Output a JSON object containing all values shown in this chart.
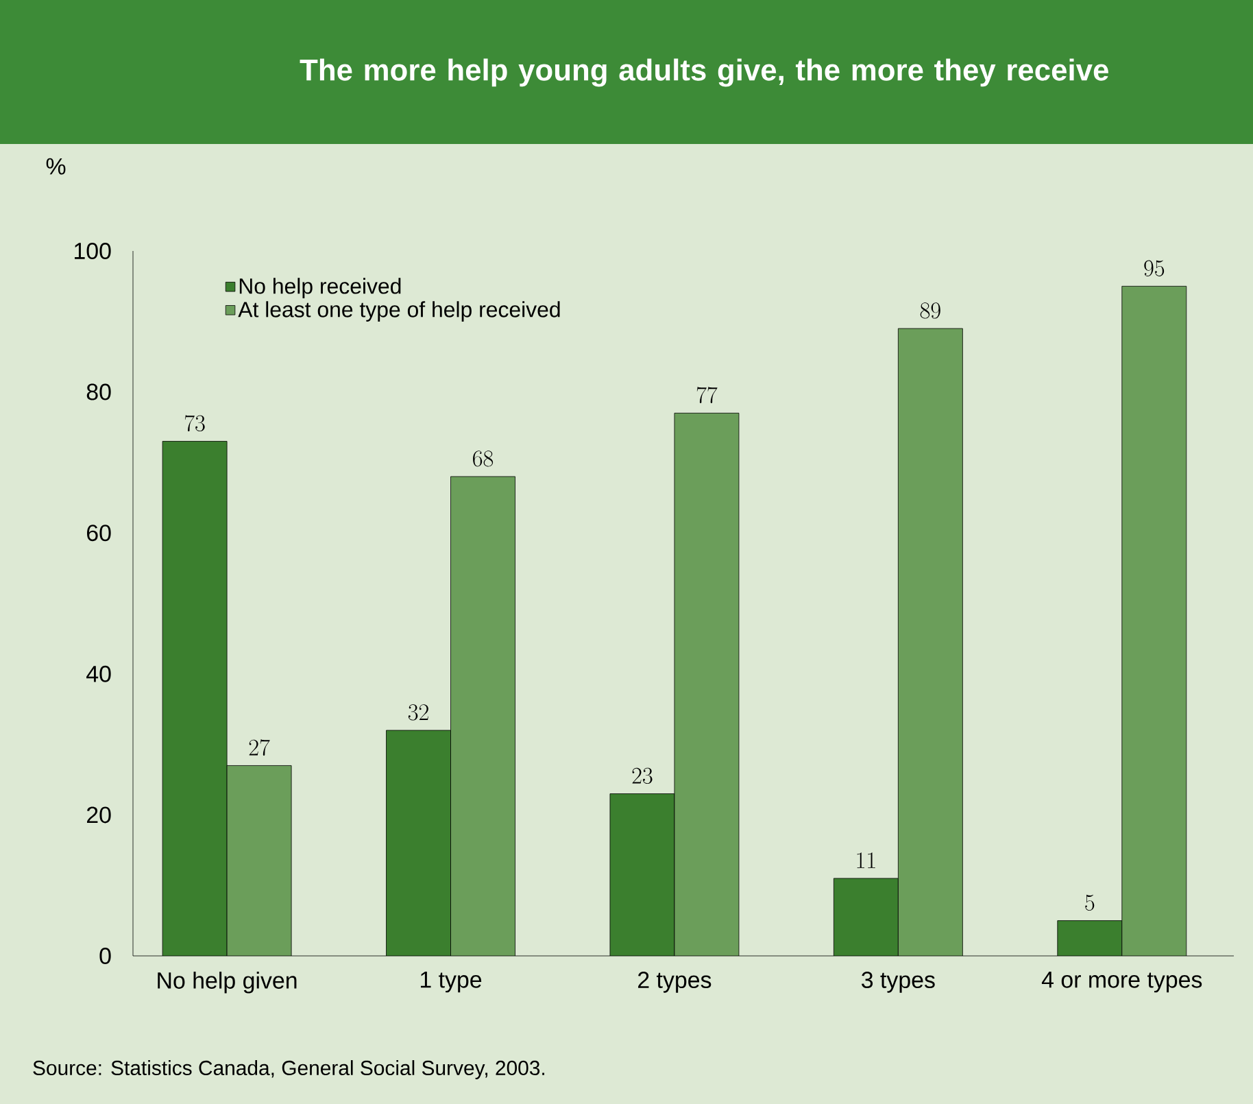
{
  "chart_data": {
    "type": "bar",
    "title": "The more help young adults give, the more they receive",
    "ylabel": "%",
    "categories": [
      "No help given",
      "1 type",
      "2 types",
      "3 types",
      "4 or more types"
    ],
    "series": [
      {
        "name": "No help received",
        "color": "#3b7f2e",
        "values": [
          73,
          32,
          23,
          11,
          5
        ]
      },
      {
        "name": "At least one type of help received",
        "color": "#6b9e5a",
        "values": [
          27,
          68,
          77,
          89,
          95
        ]
      }
    ],
    "ylim": [
      0,
      100
    ],
    "yticks": [
      0,
      20,
      40,
      60,
      80,
      100
    ],
    "data_labels": true,
    "legend": "top left",
    "grid": false,
    "annotations": [
      "Source: Statistics Canada, General Social Survey, 2003."
    ]
  }
}
